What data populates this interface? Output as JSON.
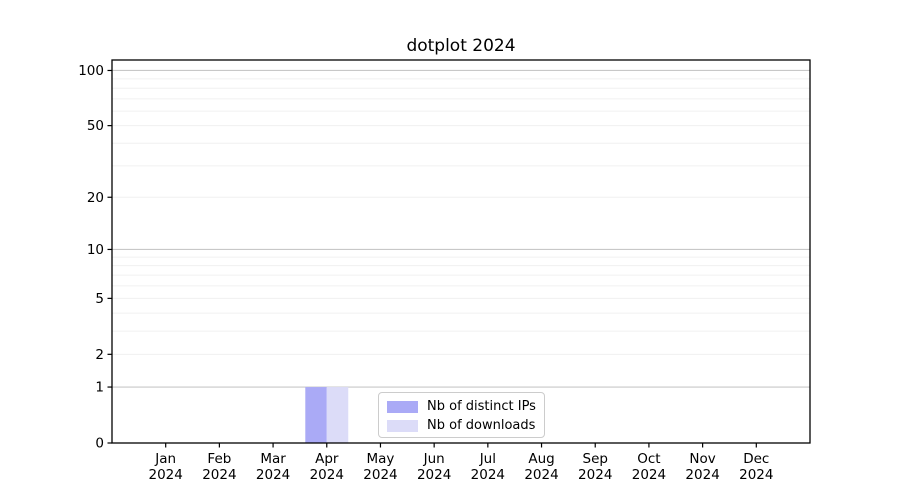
{
  "page": {
    "background": "#ffffff"
  },
  "chart_data": {
    "type": "bar",
    "title": "dotplot 2024",
    "categories": [
      "Jan",
      "Feb",
      "Mar",
      "Apr",
      "May",
      "Jun",
      "Jul",
      "Aug",
      "Sep",
      "Oct",
      "Nov",
      "Dec"
    ],
    "category_year": "2024",
    "series": [
      {
        "name": "Nb of distinct IPs",
        "color": "#aaaaf6",
        "values": [
          0,
          0,
          0,
          1,
          0,
          0,
          0,
          0,
          0,
          0,
          0,
          0
        ]
      },
      {
        "name": "Nb of downloads",
        "color": "#dcdcf8",
        "values": [
          0,
          0,
          0,
          1,
          0,
          0,
          0,
          0,
          0,
          0,
          0,
          0
        ]
      }
    ],
    "xlabel": "",
    "ylabel": "",
    "y_axis": {
      "scale": "log1p",
      "ylim": [
        0,
        114
      ],
      "tick_values": [
        0,
        1,
        2,
        5,
        10,
        20,
        50,
        100
      ],
      "decade_gridlines": [
        1,
        10,
        100
      ],
      "minor_gridlines": [
        2,
        3,
        4,
        5,
        6,
        7,
        8,
        9,
        20,
        30,
        40,
        50,
        60,
        70,
        80,
        90
      ]
    },
    "legend": {
      "position": "lower center"
    },
    "grid": true
  },
  "colors": {
    "decade_grid": "#c8c8c8",
    "minor_grid": "#f0f0f0",
    "axis": "#000000",
    "text": "#000000"
  }
}
